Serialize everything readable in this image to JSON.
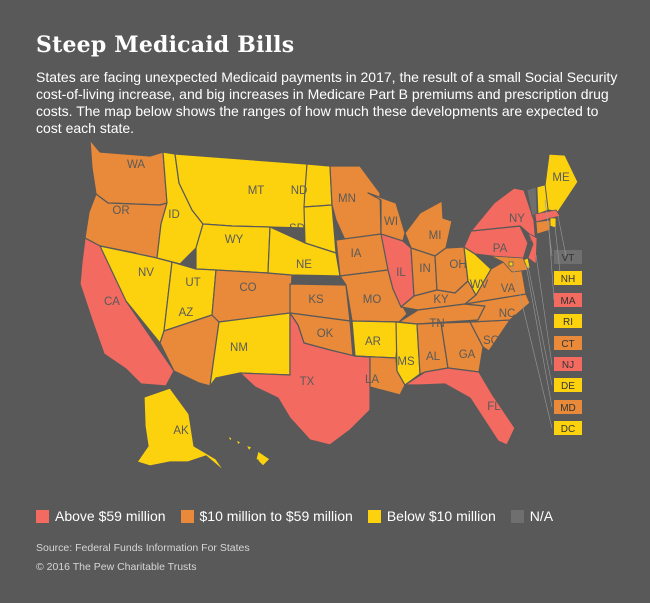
{
  "title": "Steep Medicaid Bills",
  "subtitle": "States are facing unexpected Medicaid payments in 2017, the result of a small Social Security cost-of-living increase, and big increases in Medicare Part B premiums and prescription drug costs. The map below shows the ranges of how much these developments are expected to cost each state.",
  "colors": {
    "background": "#595959",
    "above": "#f26a60",
    "mid": "#e88a39",
    "below": "#fcd20f",
    "na": "#6f6f6f",
    "borders": "#595959"
  },
  "legend": [
    {
      "key": "above",
      "label": "Above $59 million"
    },
    {
      "key": "mid",
      "label": "$10 million to $59 million"
    },
    {
      "key": "below",
      "label": "Below $10 million"
    },
    {
      "key": "na",
      "label": "N/A"
    }
  ],
  "states": [
    {
      "abbr": "WA",
      "cat": "mid"
    },
    {
      "abbr": "OR",
      "cat": "mid"
    },
    {
      "abbr": "CA",
      "cat": "above"
    },
    {
      "abbr": "NV",
      "cat": "below"
    },
    {
      "abbr": "ID",
      "cat": "below"
    },
    {
      "abbr": "MT",
      "cat": "below"
    },
    {
      "abbr": "WY",
      "cat": "below"
    },
    {
      "abbr": "UT",
      "cat": "below"
    },
    {
      "abbr": "AZ",
      "cat": "mid"
    },
    {
      "abbr": "CO",
      "cat": "mid"
    },
    {
      "abbr": "NM",
      "cat": "below"
    },
    {
      "abbr": "ND",
      "cat": "below"
    },
    {
      "abbr": "SD",
      "cat": "below"
    },
    {
      "abbr": "NE",
      "cat": "below"
    },
    {
      "abbr": "KS",
      "cat": "mid"
    },
    {
      "abbr": "OK",
      "cat": "mid"
    },
    {
      "abbr": "TX",
      "cat": "above"
    },
    {
      "abbr": "MN",
      "cat": "mid"
    },
    {
      "abbr": "IA",
      "cat": "mid"
    },
    {
      "abbr": "MO",
      "cat": "mid"
    },
    {
      "abbr": "AR",
      "cat": "below"
    },
    {
      "abbr": "LA",
      "cat": "mid"
    },
    {
      "abbr": "WI",
      "cat": "mid"
    },
    {
      "abbr": "IL",
      "cat": "above"
    },
    {
      "abbr": "MS",
      "cat": "below"
    },
    {
      "abbr": "MI",
      "cat": "mid"
    },
    {
      "abbr": "IN",
      "cat": "mid"
    },
    {
      "abbr": "OH",
      "cat": "mid"
    },
    {
      "abbr": "KY",
      "cat": "mid"
    },
    {
      "abbr": "TN",
      "cat": "mid"
    },
    {
      "abbr": "AL",
      "cat": "mid"
    },
    {
      "abbr": "GA",
      "cat": "mid"
    },
    {
      "abbr": "FL",
      "cat": "above"
    },
    {
      "abbr": "SC",
      "cat": "mid"
    },
    {
      "abbr": "NC",
      "cat": "mid"
    },
    {
      "abbr": "VA",
      "cat": "mid"
    },
    {
      "abbr": "WV",
      "cat": "below"
    },
    {
      "abbr": "PA",
      "cat": "above"
    },
    {
      "abbr": "NY",
      "cat": "above"
    },
    {
      "abbr": "ME",
      "cat": "below"
    },
    {
      "abbr": "AK",
      "cat": "below"
    },
    {
      "abbr": "HI",
      "cat": "below"
    }
  ],
  "small_states": [
    {
      "abbr": "VT",
      "cat": "na"
    },
    {
      "abbr": "NH",
      "cat": "below"
    },
    {
      "abbr": "MA",
      "cat": "above"
    },
    {
      "abbr": "RI",
      "cat": "below"
    },
    {
      "abbr": "CT",
      "cat": "mid"
    },
    {
      "abbr": "NJ",
      "cat": "above"
    },
    {
      "abbr": "DE",
      "cat": "below"
    },
    {
      "abbr": "MD",
      "cat": "mid"
    },
    {
      "abbr": "DC",
      "cat": "below"
    }
  ],
  "source": "Source: Federal Funds Information For States",
  "copyright": "© 2016 The Pew Charitable Trusts"
}
